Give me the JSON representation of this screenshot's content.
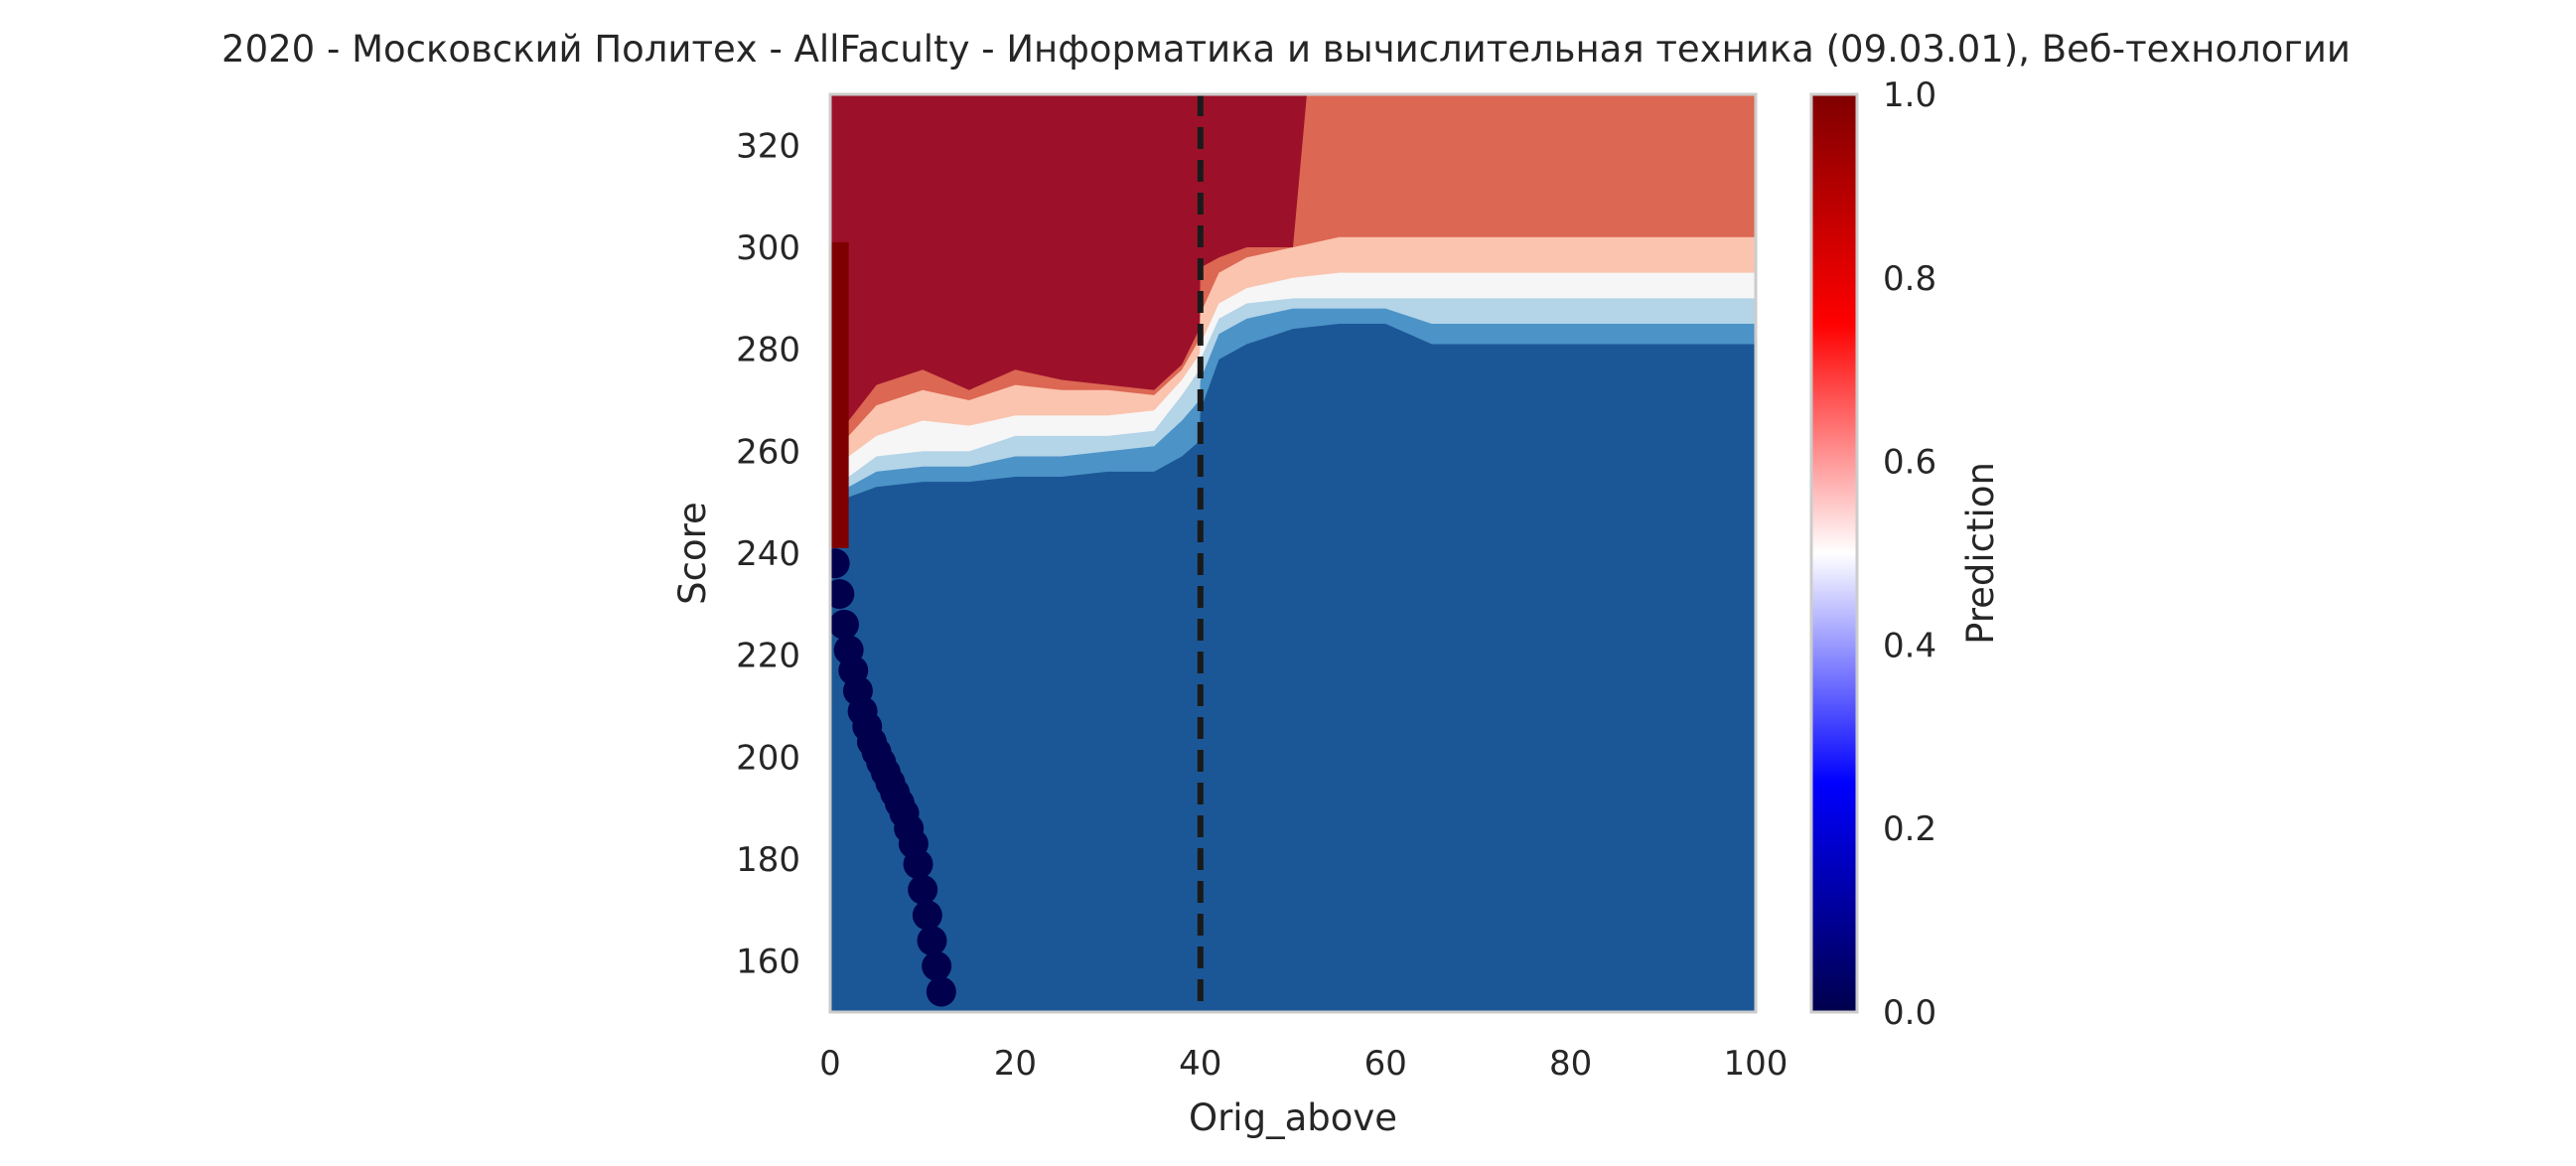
{
  "chart_data": {
    "type": "heatmap",
    "title": "2020 - Московский Политех - AllFaculty - Информатика и вычислительная техника (09.03.01), Веб-технологии",
    "xlabel": "Orig_above",
    "ylabel": "Score",
    "xlim": [
      0,
      100
    ],
    "ylim": [
      150,
      330
    ],
    "x_ticks": [
      0,
      20,
      40,
      60,
      80,
      100
    ],
    "y_ticks": [
      160,
      180,
      200,
      220,
      240,
      260,
      280,
      300,
      320
    ],
    "grid": false,
    "colormap": "seismic",
    "colorbar": {
      "label": "Prediction",
      "range": [
        0,
        1
      ],
      "ticks": [
        0.0,
        0.2,
        0.4,
        0.6,
        0.8,
        1.0
      ],
      "tick_labels": [
        "0.0",
        "0.2",
        "0.4",
        "0.6",
        "0.8",
        "1.0"
      ]
    },
    "contour_levels": [
      {
        "value": 0.15,
        "color": "#1b5796"
      },
      {
        "value": 0.3,
        "color": "#4c93c7"
      },
      {
        "value": 0.4,
        "color": "#b4d4e8"
      },
      {
        "value": 0.5,
        "color": "#f6f6f6"
      },
      {
        "value": 0.6,
        "color": "#fbc4ae"
      },
      {
        "value": 0.75,
        "color": "#dc6753"
      },
      {
        "value": 0.9,
        "color": "#9c1129"
      }
    ],
    "boundaries": {
      "x": [
        0,
        2,
        5,
        10,
        15,
        20,
        25,
        30,
        35,
        38,
        39.9,
        40,
        42,
        45,
        50,
        55,
        60,
        65,
        66,
        70,
        80,
        90,
        100
      ],
      "b15": [
        240,
        247,
        250,
        251,
        251,
        251,
        251,
        252,
        252,
        254,
        256,
        262,
        274,
        276,
        277,
        277,
        277,
        276,
        276,
        276,
        276,
        276,
        276
      ],
      "b30": [
        243,
        251,
        253,
        254,
        254,
        255,
        255,
        256,
        256,
        259,
        262,
        268,
        278,
        281,
        284,
        285,
        285,
        281,
        281,
        281,
        281,
        281,
        281
      ],
      "b40": [
        245,
        253,
        256,
        257,
        257,
        259,
        259,
        260,
        261,
        266,
        270,
        274,
        283,
        286,
        288,
        288,
        288,
        285,
        285,
        285,
        285,
        285,
        285
      ],
      "b50": [
        248,
        255,
        259,
        260,
        260,
        263,
        263,
        263,
        264,
        271,
        276,
        278,
        286,
        289,
        290,
        290,
        290,
        290,
        290,
        290,
        290,
        290,
        290
      ],
      "b60": [
        251,
        259,
        263,
        266,
        265,
        267,
        267,
        267,
        268,
        274,
        279,
        281,
        289,
        292,
        294,
        295,
        295,
        295,
        295,
        295,
        295,
        295,
        295
      ],
      "b75": [
        255,
        263,
        269,
        272,
        270,
        273,
        272,
        272,
        271,
        276,
        282,
        287,
        295,
        298,
        300,
        302,
        302,
        302,
        302,
        302,
        302,
        302,
        302
      ],
      "b90_x": [
        0,
        2,
        5,
        10,
        15,
        20,
        25,
        30,
        35,
        38,
        39.9,
        40,
        42,
        45,
        50,
        51.5
      ],
      "b90": [
        258,
        266,
        273,
        276,
        272,
        276,
        274,
        273,
        272,
        277,
        284,
        296,
        298,
        300,
        300,
        330
      ]
    },
    "red_strip": {
      "x": [
        0,
        2
      ],
      "y": [
        241,
        301
      ],
      "value": 1.0
    },
    "dark_points": {
      "value": 0.0,
      "x": [
        0.5,
        1.0,
        1.5,
        2.0,
        2.5,
        3.0,
        3.5,
        4.0,
        4.5,
        5.0,
        5.5,
        6.0,
        6.5,
        7.0,
        7.5,
        8.0,
        8.5,
        9.0,
        9.5,
        10.0,
        10.5,
        11.0,
        11.5,
        12.0
      ],
      "y": [
        238,
        232,
        226,
        221,
        217,
        213,
        209,
        206,
        203,
        201,
        199,
        197,
        195,
        193,
        191,
        189,
        186,
        183,
        179,
        174,
        169,
        164,
        159,
        154
      ]
    },
    "vline": {
      "x": 40,
      "style": "dashed",
      "color": "#1a1a1a"
    }
  }
}
